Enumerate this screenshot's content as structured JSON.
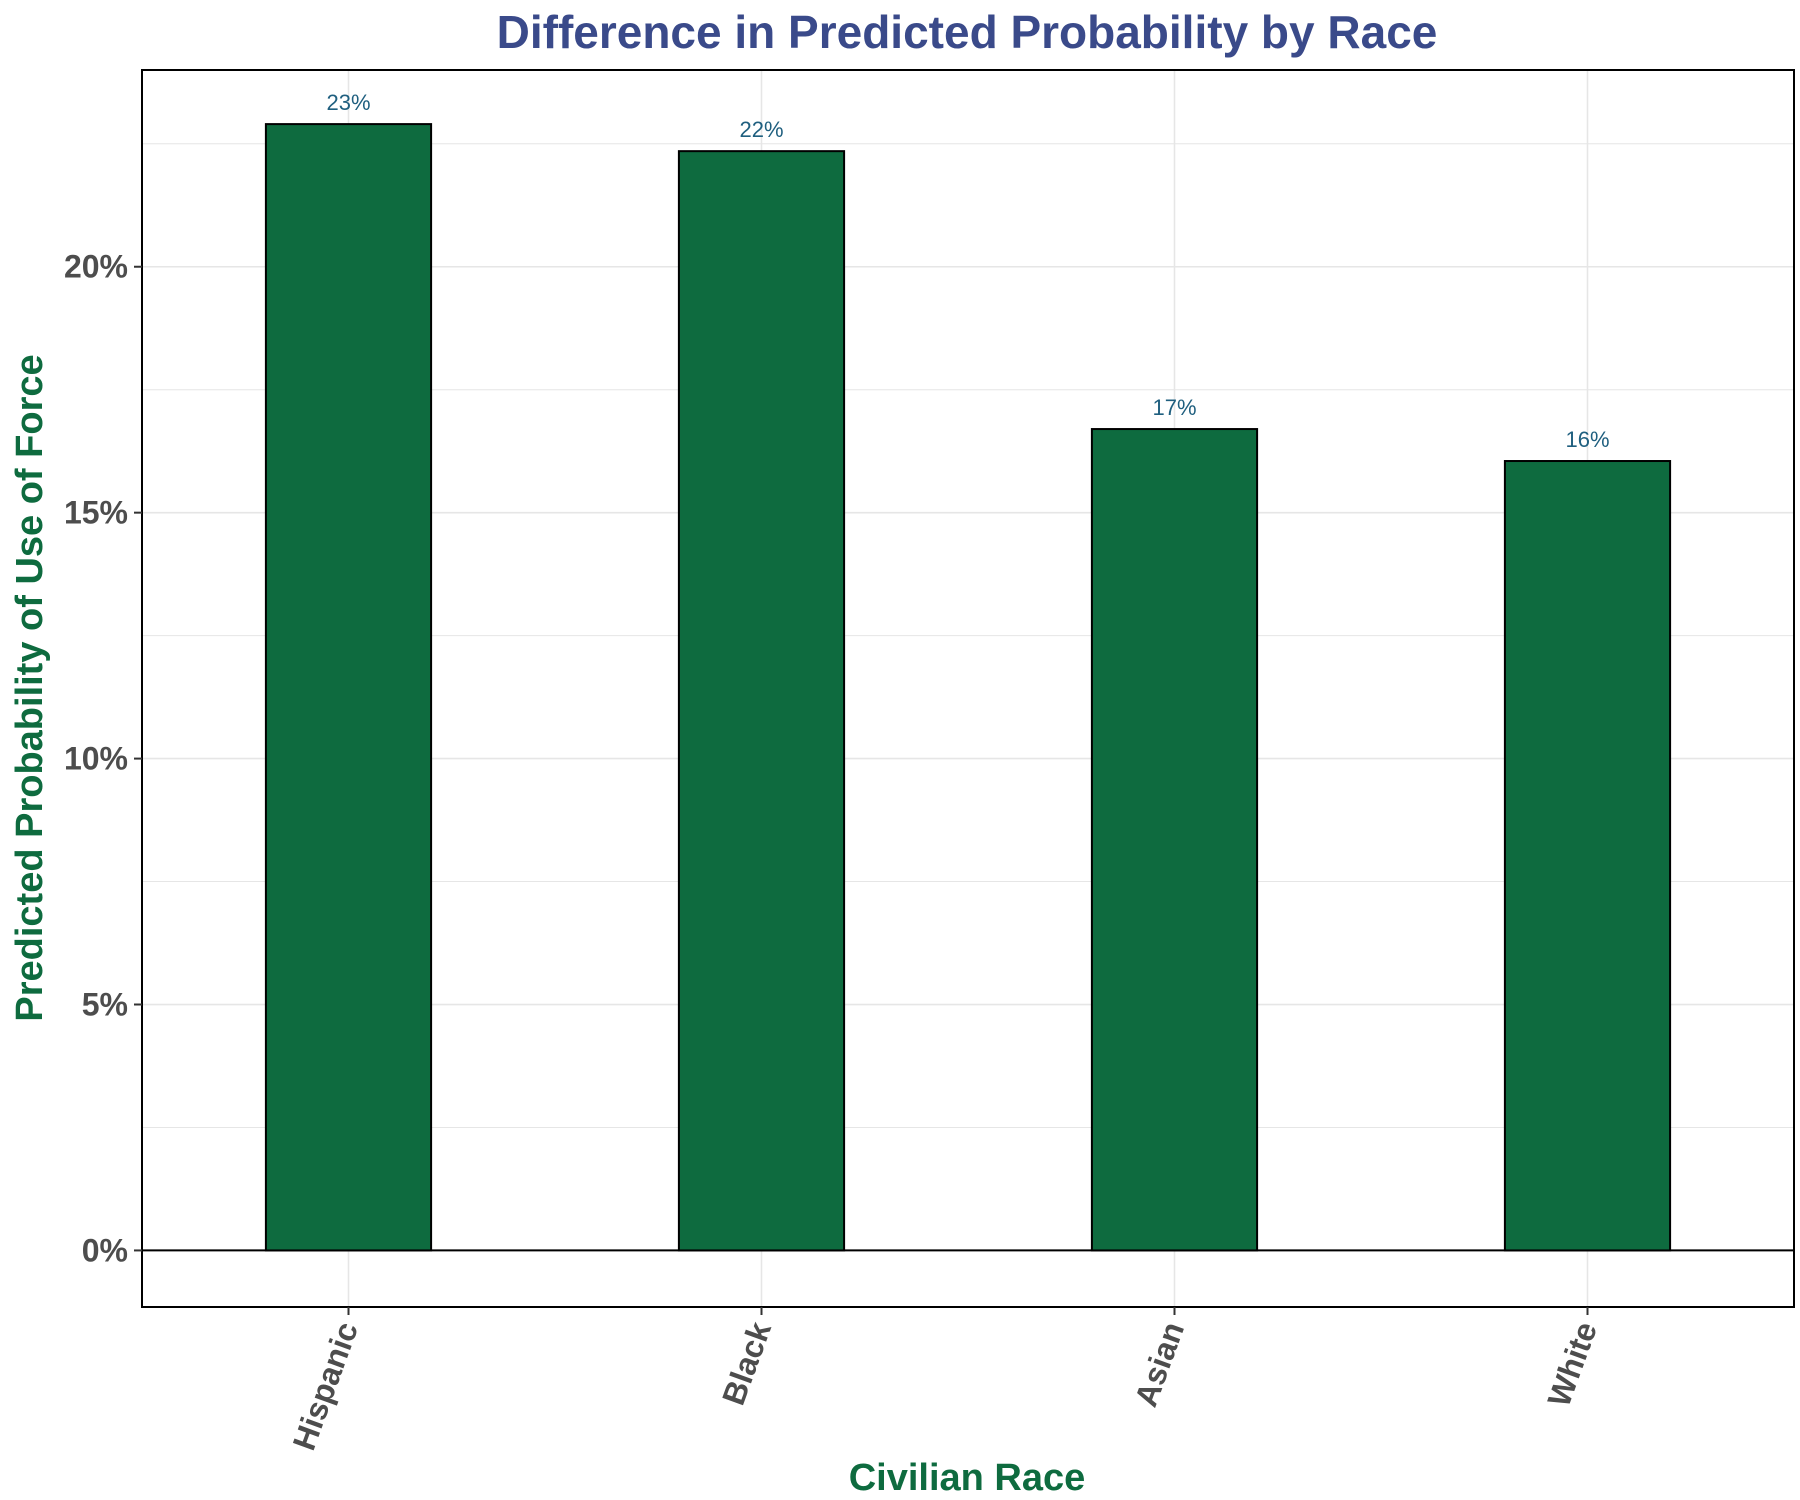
{
  "chart_data": {
    "type": "bar",
    "title": "Difference in Predicted Probability by Race",
    "xlabel": "Civilian Race",
    "ylabel": "Predicted Probability of Use of Force",
    "categories": [
      "Hispanic",
      "Black",
      "Asian",
      "White"
    ],
    "values": [
      0.229,
      0.2235,
      0.167,
      0.1605
    ],
    "data_labels": [
      "23%",
      "22%",
      "17%",
      "16%"
    ],
    "ylim": [
      -0.0115,
      0.24
    ],
    "yticks": [
      0,
      0.05,
      0.1,
      0.15,
      0.2
    ],
    "ytick_labels": [
      "0%",
      "5%",
      "10%",
      "15%",
      "20%"
    ],
    "grid": true,
    "bar_color": "#0e6b3f",
    "bar_outline": "#000000",
    "title_color": "#3a4a8a",
    "axis_title_color": "#0e6b3f",
    "data_label_color": "#1f5f7f"
  }
}
